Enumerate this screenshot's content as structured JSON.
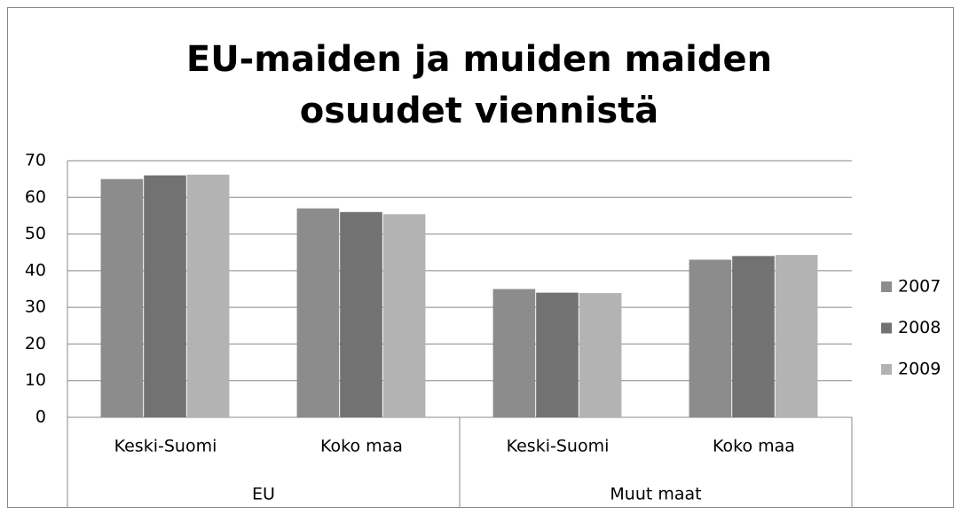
{
  "chart_data": {
    "type": "bar",
    "title": "EU-maiden ja muiden maiden osuudet viennistä",
    "categories": [
      "Keski-Suomi",
      "Koko maa",
      "Keski-Suomi",
      "Koko maa"
    ],
    "groups": [
      "EU",
      "Muut maat"
    ],
    "series": [
      {
        "name": "2007",
        "color": "#8c8c8c",
        "values": [
          65,
          57,
          35,
          43
        ]
      },
      {
        "name": "2008",
        "color": "#727272",
        "values": [
          66,
          56,
          34,
          44
        ]
      },
      {
        "name": "2009",
        "color": "#b3b3b3",
        "values": [
          66.2,
          55.4,
          33.9,
          44.3
        ]
      }
    ],
    "ylim": [
      0,
      70
    ],
    "yticks": [
      0,
      10,
      20,
      30,
      40,
      50,
      60,
      70
    ],
    "grid": true,
    "legend": "right"
  }
}
